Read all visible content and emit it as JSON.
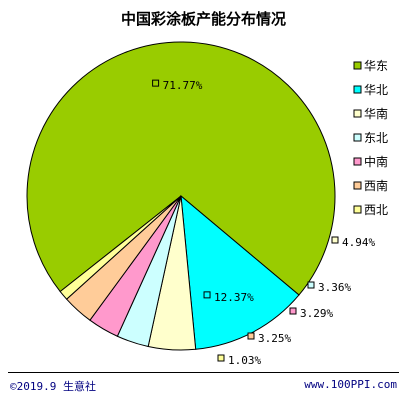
{
  "title": "中国彩涂板产能分布情况",
  "footer": {
    "left": "©2019.9 生意社",
    "right": "www.100PPI.com"
  },
  "chart_data": {
    "type": "pie",
    "title": "中国彩涂板产能分布情况",
    "legend_position": "right",
    "slices": [
      {
        "name": "华东",
        "value": 71.77,
        "label": "71.77%",
        "color": "#99cc00"
      },
      {
        "name": "华北",
        "value": 12.37,
        "label": "12.37%",
        "color": "#00ffff"
      },
      {
        "name": "华南",
        "value": 4.94,
        "label": "4.94%",
        "color": "#ffffcc"
      },
      {
        "name": "东北",
        "value": 3.36,
        "label": "3.36%",
        "color": "#ccffff"
      },
      {
        "name": "中南",
        "value": 3.29,
        "label": "3.29%",
        "color": "#ff99cc"
      },
      {
        "name": "西南",
        "value": 3.25,
        "label": "3.25%",
        "color": "#ffcc99"
      },
      {
        "name": "西北",
        "value": 1.03,
        "label": "1.03%",
        "color": "#ffff99"
      }
    ]
  }
}
